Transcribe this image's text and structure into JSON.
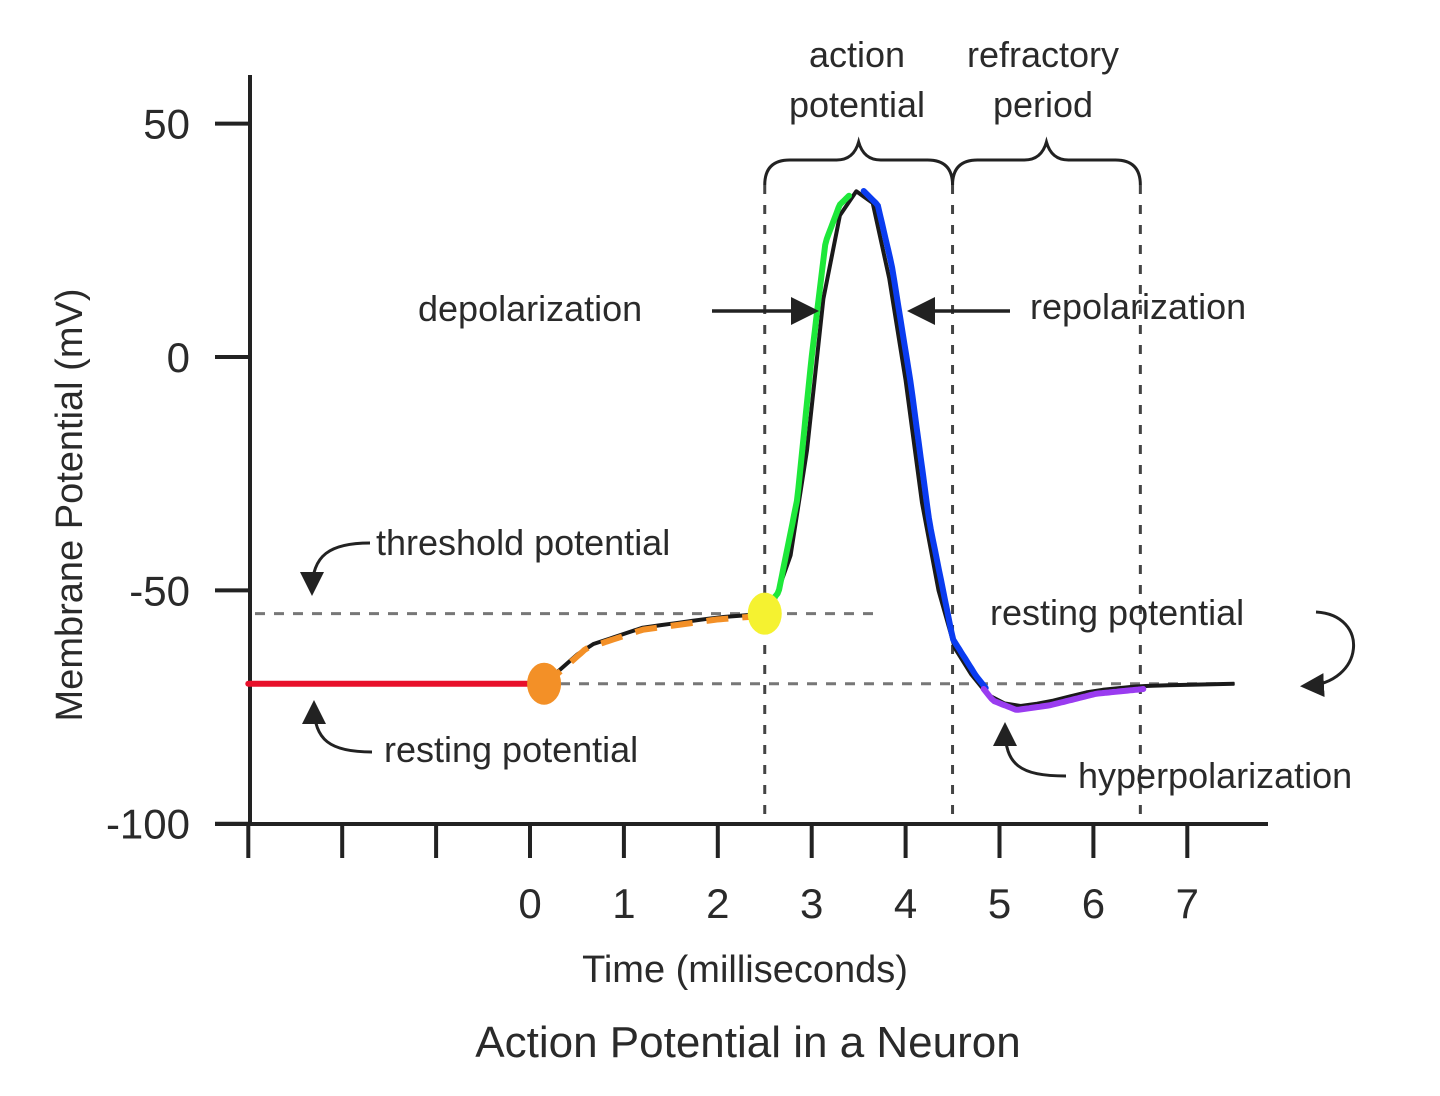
{
  "chart_data": {
    "type": "line",
    "title": "Action Potential in a Neuron",
    "xlabel": "Time (milliseconds)",
    "ylabel": "Membrane Potential (mV)",
    "xlim": [
      -3,
      8.4
    ],
    "ylim": [
      -100,
      60
    ],
    "x_ticks": [
      -3,
      -2,
      -1,
      0,
      1,
      2,
      3,
      4,
      5,
      6,
      7
    ],
    "x_tick_labels": [
      "",
      "",
      "",
      "0",
      "1",
      "2",
      "3",
      "4",
      "5",
      "6",
      "7"
    ],
    "y_ticks": [
      50,
      0,
      -50,
      -100
    ],
    "y_tick_labels": [
      "50",
      "0",
      "-50",
      "-100"
    ],
    "grid": false,
    "curve": [
      [
        -3,
        -70
      ],
      [
        0.15,
        -70
      ],
      [
        0.6,
        -62
      ],
      [
        1.2,
        -58
      ],
      [
        2.0,
        -55.8
      ],
      [
        2.5,
        -55
      ],
      [
        2.7,
        -50
      ],
      [
        2.9,
        -30
      ],
      [
        3.05,
        0
      ],
      [
        3.2,
        25
      ],
      [
        3.35,
        33
      ],
      [
        3.5,
        36
      ],
      [
        3.65,
        33
      ],
      [
        3.8,
        20
      ],
      [
        4.0,
        -5
      ],
      [
        4.2,
        -35
      ],
      [
        4.45,
        -60
      ],
      [
        4.7,
        -68
      ],
      [
        4.9,
        -73
      ],
      [
        5.15,
        -75
      ],
      [
        5.5,
        -74
      ],
      [
        6.0,
        -71.5
      ],
      [
        6.5,
        -70.5
      ],
      [
        7.5,
        -70
      ]
    ],
    "segments": [
      {
        "phase": "resting",
        "from": -3,
        "to": 0.15,
        "color": "#e8102a",
        "dashed": false
      },
      {
        "phase": "stimulus",
        "from": 0.15,
        "to": 2.5,
        "color": "#f39027",
        "dashed": true
      },
      {
        "phase": "depolarization",
        "from": 2.5,
        "to": 3.45,
        "color": "#1ee83a",
        "dashed": false
      },
      {
        "phase": "repolarization",
        "from": 3.5,
        "to": 4.8,
        "color": "#0a3cf0",
        "dashed": false
      },
      {
        "phase": "hyperpolarization",
        "from": 4.8,
        "to": 6.5,
        "color": "#9a3cf0",
        "dashed": false
      }
    ],
    "points": [
      {
        "x": 0.15,
        "y": -70,
        "color": "#f39027"
      },
      {
        "x": 2.5,
        "y": -55,
        "color": "#f5f230"
      }
    ],
    "reference_lines": {
      "threshold_mV": -55,
      "resting_mV": -70,
      "vertical_ms": [
        2.5,
        4.5,
        6.5
      ]
    },
    "annotations": {
      "action_potential": [
        "action",
        "potential"
      ],
      "refractory_period": [
        "refractory",
        "period"
      ],
      "depolarization": "depolarization",
      "repolarization": "repolarization",
      "threshold_potential": "threshold potential",
      "resting_potential_left": "resting potential",
      "resting_potential_right": "resting potential",
      "hyperpolarization": "hyperpolarization"
    }
  }
}
